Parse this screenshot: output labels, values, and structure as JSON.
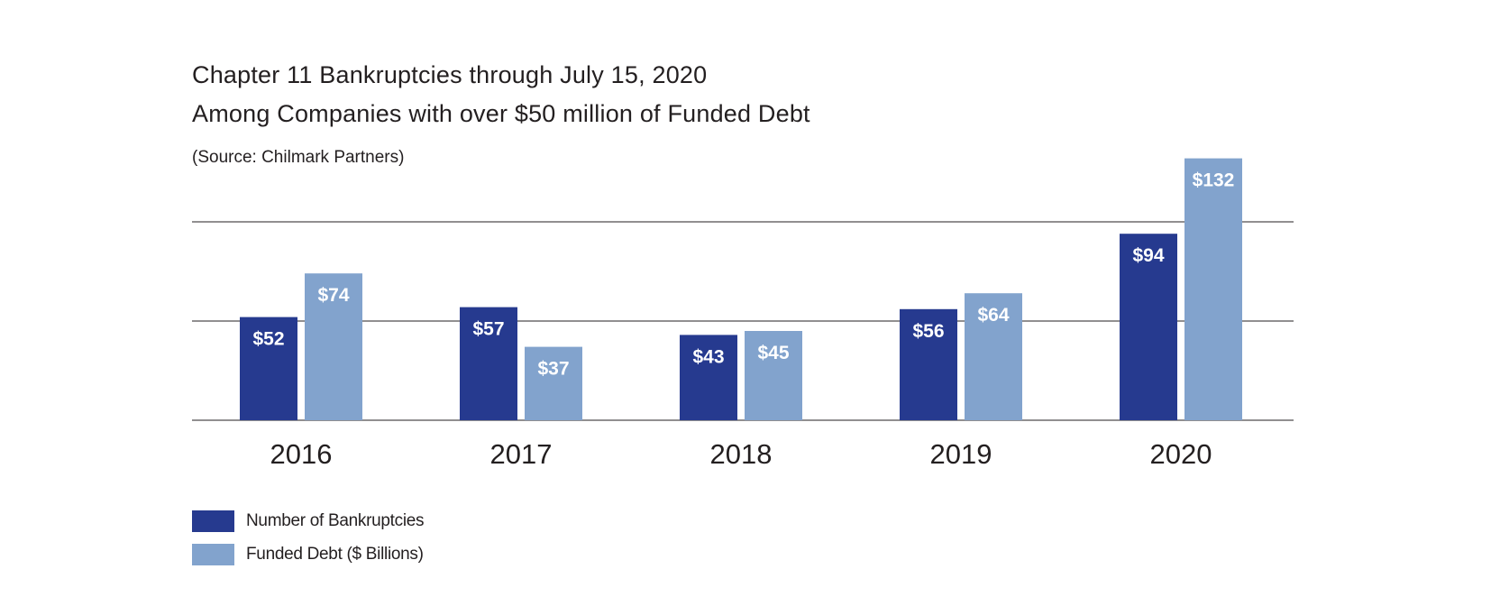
{
  "chart_data": {
    "type": "bar",
    "title": "Chapter 11 Bankruptcies through July 15, 2020",
    "subtitle": "Among Companies with over $50 million of Funded Debt",
    "source": "(Source: Chilmark Partners)",
    "categories": [
      "2016",
      "2017",
      "2018",
      "2019",
      "2020"
    ],
    "series": [
      {
        "name": "Number of Bankruptcies",
        "color": "#263a8f",
        "values": [
          52,
          57,
          43,
          56,
          94
        ],
        "labels": [
          "$52",
          "$57",
          "$43",
          "$56",
          "$94"
        ]
      },
      {
        "name": "Funded Debt ($ Billions)",
        "color": "#82a3cd",
        "values": [
          74,
          37,
          45,
          64,
          132
        ],
        "labels": [
          "$74",
          "$37",
          "$45",
          "$64",
          "$132"
        ]
      }
    ],
    "ylim": [
      0,
      132
    ],
    "gridlines": [
      0,
      50,
      100
    ],
    "grid": true,
    "legend": "bottom-left",
    "xlabel": "",
    "ylabel": ""
  }
}
